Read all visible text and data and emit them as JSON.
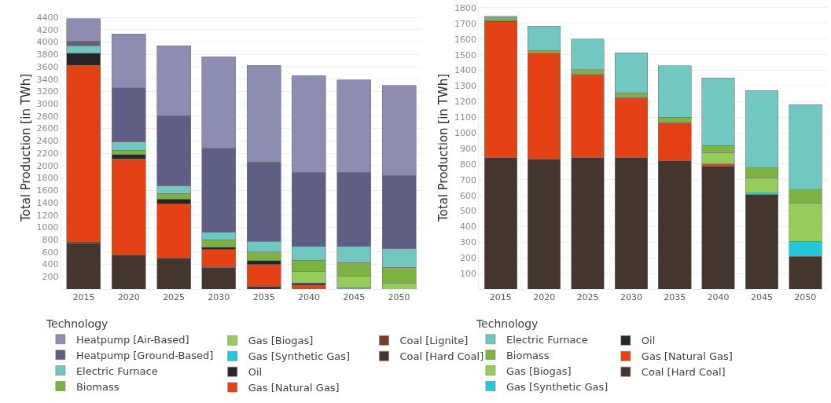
{
  "chart_data": [
    {
      "type": "bar",
      "stacked": true,
      "ylabel": "Total Production [in TWh]",
      "legend_title": "Technology",
      "legend": "bottom",
      "grid": "y",
      "categories": [
        "2015",
        "2020",
        "2025",
        "2030",
        "2035",
        "2040",
        "2045",
        "2050"
      ],
      "ylim": [
        0,
        4580
      ],
      "yticks": [
        200,
        400,
        600,
        800,
        1000,
        1200,
        1400,
        1600,
        1800,
        2000,
        2200,
        2400,
        2600,
        2800,
        3000,
        3200,
        3400,
        3600,
        3800,
        4000,
        4200,
        4400
      ],
      "series": [
        {
          "name": "Coal [Hard Coal]",
          "color": "#45352f",
          "values": [
            750,
            550,
            500,
            350,
            40,
            null,
            null,
            null
          ]
        },
        {
          "name": "Coal [Lignite]",
          "color": "#7a3d2a",
          "values": [
            20,
            null,
            null,
            null,
            null,
            null,
            null,
            null
          ]
        },
        {
          "name": "Gas [Natural Gas]",
          "color": "#e44114",
          "values": [
            2850,
            1560,
            880,
            290,
            360,
            70,
            null,
            null
          ]
        },
        {
          "name": "Oil",
          "color": "#262626",
          "values": [
            200,
            70,
            80,
            40,
            60,
            30,
            null,
            null
          ]
        },
        {
          "name": "Gas [Synthetic Gas]",
          "color": "#26c6da",
          "values": [
            null,
            null,
            null,
            null,
            null,
            null,
            20,
            null
          ]
        },
        {
          "name": "Gas [Biogas]",
          "color": "#96cc5a",
          "values": [
            null,
            null,
            null,
            null,
            null,
            190,
            190,
            90
          ]
        },
        {
          "name": "Biomass",
          "color": "#7cb342",
          "values": [
            null,
            70,
            90,
            120,
            140,
            180,
            220,
            260
          ]
        },
        {
          "name": "Electric Furnace",
          "color": "#72c8c0",
          "values": [
            120,
            130,
            120,
            120,
            170,
            220,
            260,
            300
          ]
        },
        {
          "name": "Heatpump [Ground-Based]",
          "color": "#5f5f85",
          "values": [
            80,
            880,
            1140,
            1360,
            1290,
            1200,
            1200,
            1190
          ]
        },
        {
          "name": "Heatpump [Air-Based]",
          "color": "#8d8db3",
          "values": [
            360,
            870,
            1130,
            1480,
            1560,
            1570,
            1500,
            1460
          ]
        }
      ]
    },
    {
      "type": "bar",
      "stacked": true,
      "ylabel": "Total Production [in TWh]",
      "legend_title": "Technology",
      "legend": "bottom",
      "grid": "y",
      "categories": [
        "2015",
        "2020",
        "2025",
        "2030",
        "2035",
        "2040",
        "2045",
        "2050"
      ],
      "ylim": [
        0,
        1810
      ],
      "yticks": [
        100,
        200,
        300,
        400,
        500,
        600,
        700,
        800,
        900,
        1000,
        1100,
        1200,
        1300,
        1400,
        1500,
        1600,
        1700,
        1800
      ],
      "series": [
        {
          "name": "Coal [Hard Coal]",
          "color": "#45352f",
          "values": [
            840,
            830,
            840,
            840,
            820,
            785,
            605,
            210
          ]
        },
        {
          "name": "Gas [Natural Gas]",
          "color": "#e44114",
          "values": [
            870,
            680,
            535,
            385,
            245,
            15,
            null,
            null
          ]
        },
        {
          "name": "Oil",
          "color": "#262626",
          "values": [
            5,
            null,
            null,
            null,
            null,
            null,
            null,
            null
          ]
        },
        {
          "name": "Gas [Synthetic Gas]",
          "color": "#26c6da",
          "values": [
            null,
            null,
            null,
            null,
            null,
            null,
            10,
            95
          ]
        },
        {
          "name": "Gas [Biogas]",
          "color": "#96cc5a",
          "values": [
            null,
            null,
            null,
            null,
            null,
            70,
            95,
            245
          ]
        },
        {
          "name": "Biomass",
          "color": "#7cb342",
          "values": [
            20,
            17,
            30,
            30,
            35,
            50,
            65,
            85
          ]
        },
        {
          "name": "Electric Furnace",
          "color": "#72c8c0",
          "values": [
            10,
            155,
            195,
            257,
            330,
            430,
            495,
            545
          ]
        }
      ]
    }
  ]
}
